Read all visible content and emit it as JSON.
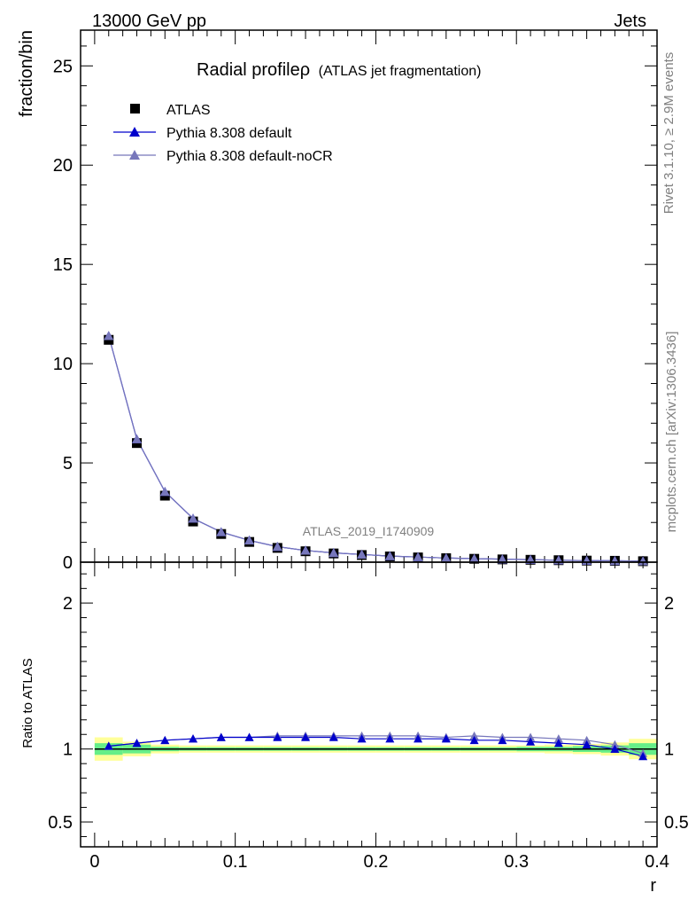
{
  "header": {
    "left": "13000 GeV pp",
    "right": "Jets"
  },
  "side_labels": {
    "rivet": "Rivet 3.1.10, ≥ 2.9M events",
    "mcplots": "mcplots.cern.ch [arXiv:1306.3436]"
  },
  "watermark": "ATLAS_2019_I1740909",
  "colors": {
    "atlas": "#000000",
    "default": "#0000cc",
    "nocr": "#7777bb",
    "band_inner": "#66ee88",
    "band_outer": "#ffff99"
  },
  "chart_data": [
    {
      "type": "scatter",
      "title": "Radial profileρ",
      "subtitle": "(ATLAS jet fragmentation)",
      "ylabel": "fraction/bin",
      "xlim": [
        -0.01,
        0.4
      ],
      "ylim": [
        0,
        26.8
      ],
      "yticks": [
        0,
        5,
        10,
        15,
        20,
        25
      ],
      "legend_position": "top-left",
      "x": [
        0.01,
        0.03,
        0.05,
        0.07,
        0.09,
        0.11,
        0.13,
        0.15,
        0.17,
        0.19,
        0.21,
        0.23,
        0.25,
        0.27,
        0.29,
        0.31,
        0.33,
        0.35,
        0.37,
        0.39
      ],
      "series": [
        {
          "name": "ATLAS",
          "marker": "square",
          "values": [
            11.2,
            6.0,
            3.35,
            2.05,
            1.42,
            1.02,
            0.72,
            0.55,
            0.44,
            0.36,
            0.29,
            0.24,
            0.2,
            0.17,
            0.14,
            0.12,
            0.1,
            0.08,
            0.07,
            0.05
          ]
        },
        {
          "name": "Pythia 8.308 default",
          "marker": "triangle",
          "values": [
            11.4,
            6.2,
            3.55,
            2.2,
            1.52,
            1.1,
            0.78,
            0.59,
            0.47,
            0.39,
            0.31,
            0.26,
            0.21,
            0.18,
            0.15,
            0.13,
            0.1,
            0.08,
            0.07,
            0.05
          ]
        },
        {
          "name": "Pythia 8.308 default-noCR",
          "marker": "triangle",
          "values": [
            11.4,
            6.2,
            3.55,
            2.2,
            1.52,
            1.1,
            0.78,
            0.59,
            0.47,
            0.39,
            0.31,
            0.26,
            0.21,
            0.18,
            0.15,
            0.13,
            0.1,
            0.08,
            0.07,
            0.05
          ]
        }
      ]
    },
    {
      "type": "line",
      "ylabel": "Ratio to ATLAS",
      "xlabel": "r",
      "xlim": [
        -0.01,
        0.4
      ],
      "ylim": [
        0.33,
        2.28
      ],
      "yticks": [
        0.5,
        1,
        2
      ],
      "ytick_labels": [
        "0.5",
        "1",
        "2"
      ],
      "xticks": [
        0,
        0.1,
        0.2,
        0.3,
        0.4
      ],
      "xtick_labels": [
        "0",
        "0.1",
        "0.2",
        "0.3",
        "0.4"
      ],
      "x": [
        0.01,
        0.03,
        0.05,
        0.07,
        0.09,
        0.11,
        0.13,
        0.15,
        0.17,
        0.19,
        0.21,
        0.23,
        0.25,
        0.27,
        0.29,
        0.31,
        0.33,
        0.35,
        0.37,
        0.39
      ],
      "bands": {
        "inner_half_width": [
          0.04,
          0.03,
          0.015,
          0.012,
          0.012,
          0.012,
          0.012,
          0.012,
          0.012,
          0.012,
          0.012,
          0.012,
          0.012,
          0.012,
          0.012,
          0.015,
          0.015,
          0.02,
          0.025,
          0.04
        ],
        "outer_half_width": [
          0.08,
          0.05,
          0.03,
          0.025,
          0.025,
          0.025,
          0.025,
          0.025,
          0.025,
          0.025,
          0.025,
          0.025,
          0.025,
          0.025,
          0.025,
          0.025,
          0.03,
          0.035,
          0.045,
          0.07
        ]
      },
      "series": [
        {
          "name": "Pythia 8.308 default",
          "values": [
            1.02,
            1.04,
            1.06,
            1.07,
            1.08,
            1.08,
            1.08,
            1.08,
            1.08,
            1.07,
            1.07,
            1.07,
            1.07,
            1.06,
            1.06,
            1.05,
            1.04,
            1.03,
            1.0,
            0.95
          ]
        },
        {
          "name": "Pythia 8.308 default-noCR",
          "values": [
            1.02,
            1.04,
            1.06,
            1.07,
            1.08,
            1.08,
            1.09,
            1.09,
            1.09,
            1.09,
            1.09,
            1.09,
            1.08,
            1.09,
            1.08,
            1.08,
            1.07,
            1.06,
            1.03,
            0.97
          ]
        }
      ]
    }
  ]
}
